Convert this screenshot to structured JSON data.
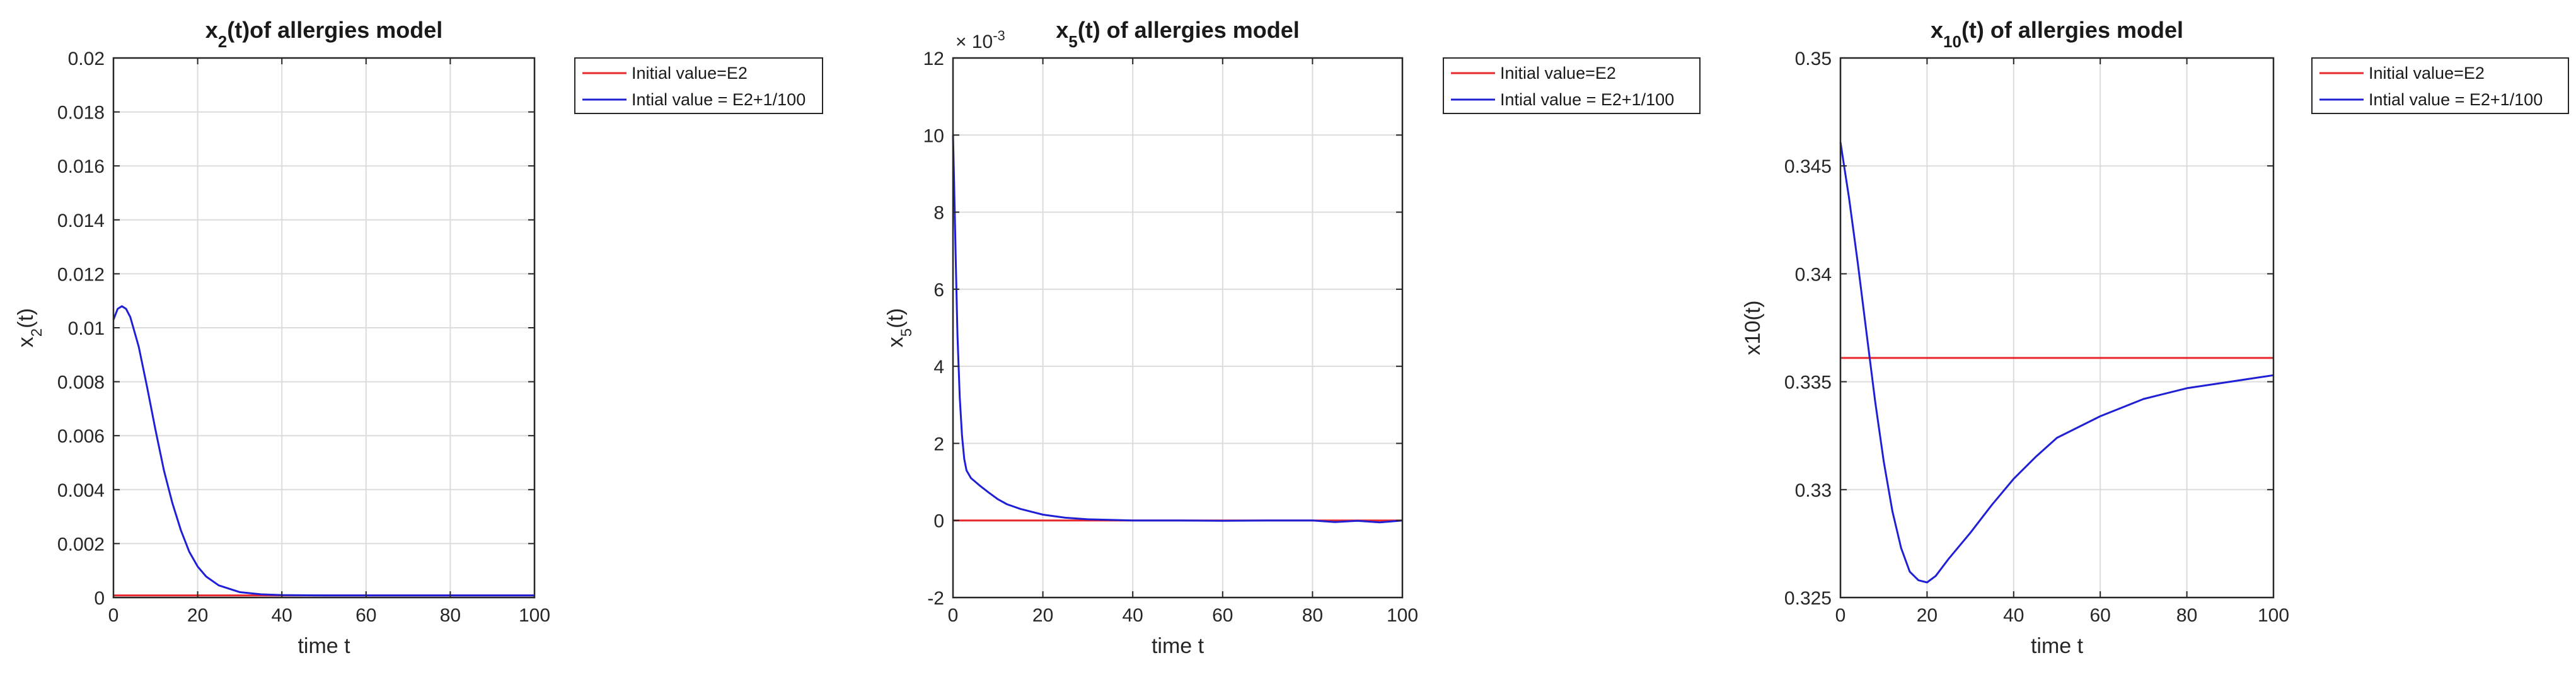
{
  "chart_data": [
    {
      "type": "line",
      "title": {
        "base": "x",
        "sub": "2",
        "rest": "(t)of allergies model"
      },
      "xlabel": "time t",
      "ylabel": {
        "base": "x",
        "sub": "2",
        "rest": "(t)"
      },
      "xlim": [
        0,
        100
      ],
      "ylim": [
        0,
        0.02
      ],
      "xticks": [
        0,
        20,
        40,
        60,
        80,
        100
      ],
      "xtick_labels": [
        "0",
        "20",
        "40",
        "60",
        "80",
        "100"
      ],
      "yticks": [
        0,
        0.002,
        0.004,
        0.006,
        0.008,
        0.01,
        0.012,
        0.014,
        0.016,
        0.018,
        0.02
      ],
      "ytick_labels": [
        "0",
        "0.002",
        "0.004",
        "0.006",
        "0.008",
        "0.01",
        "0.012",
        "0.014",
        "0.016",
        "0.018",
        "0.02"
      ],
      "exponent_label": null,
      "grid": true,
      "legend_position": "outside-right",
      "series": [
        {
          "name": "Initial value=E2",
          "color": "#e8262b",
          "x": [
            0,
            100
          ],
          "y": [
            8e-05,
            8e-05
          ]
        },
        {
          "name": "Intial value = E2+1/100",
          "color": "#1f1fd6",
          "x": [
            0,
            1,
            2,
            3,
            4,
            6,
            8,
            10,
            12,
            14,
            16,
            18,
            20,
            22,
            25,
            30,
            35,
            40,
            50,
            60,
            70,
            80,
            90,
            100
          ],
          "y": [
            0.0103,
            0.0107,
            0.0108,
            0.0107,
            0.0104,
            0.0093,
            0.0078,
            0.0062,
            0.0047,
            0.0035,
            0.0025,
            0.0017,
            0.00115,
            0.00078,
            0.00045,
            0.0002,
            0.00012,
            9e-05,
            8e-05,
            8e-05,
            8e-05,
            8e-05,
            8e-05,
            8e-05
          ]
        }
      ]
    },
    {
      "type": "line",
      "title": {
        "base": "x",
        "sub": "5",
        "rest": "(t) of allergies model"
      },
      "xlabel": "time t",
      "ylabel": {
        "base": "x",
        "sub": "5",
        "rest": "(t)"
      },
      "xlim": [
        0,
        100
      ],
      "ylim": [
        -2,
        12
      ],
      "xticks": [
        0,
        20,
        40,
        60,
        80,
        100
      ],
      "xtick_labels": [
        "0",
        "20",
        "40",
        "60",
        "80",
        "100"
      ],
      "yticks": [
        -2,
        0,
        2,
        4,
        6,
        8,
        10,
        12
      ],
      "ytick_labels": [
        "-2",
        "0",
        "2",
        "4",
        "6",
        "8",
        "10",
        "12"
      ],
      "exponent_label": {
        "prefix": "× 10",
        "exp": "-3"
      },
      "grid": true,
      "legend_position": "outside-right",
      "series": [
        {
          "name": "Initial value=E2",
          "color": "#e8262b",
          "x": [
            0,
            100
          ],
          "y": [
            0,
            0
          ]
        },
        {
          "name": "Intial value = E2+1/100",
          "color": "#1f1fd6",
          "x": [
            0,
            0.3,
            0.6,
            1,
            1.5,
            2,
            2.5,
            3,
            4,
            5,
            6,
            8,
            10,
            12,
            15,
            20,
            25,
            30,
            40,
            50,
            60,
            70,
            80,
            85,
            90,
            95,
            100
          ],
          "y": [
            10,
            8.5,
            6.8,
            4.8,
            3.2,
            2.2,
            1.6,
            1.3,
            1.1,
            1.0,
            0.9,
            0.72,
            0.55,
            0.42,
            0.3,
            0.15,
            0.07,
            0.03,
            0.0,
            0.0,
            -0.01,
            0.0,
            0.0,
            -0.04,
            -0.01,
            -0.05,
            0.0
          ]
        }
      ]
    },
    {
      "type": "line",
      "title": {
        "base": "x",
        "sub": "10",
        "rest": "(t) of allergies model"
      },
      "xlabel": "time t",
      "ylabel": {
        "base": "x10(t)",
        "sub": "",
        "rest": ""
      },
      "xlim": [
        0,
        100
      ],
      "ylim": [
        0.325,
        0.35
      ],
      "xticks": [
        0,
        20,
        40,
        60,
        80,
        100
      ],
      "xtick_labels": [
        "0",
        "20",
        "40",
        "60",
        "80",
        "100"
      ],
      "yticks": [
        0.325,
        0.33,
        0.335,
        0.34,
        0.345,
        0.35
      ],
      "ytick_labels": [
        "0.325",
        "0.33",
        "0.335",
        "0.34",
        "0.345",
        "0.35"
      ],
      "exponent_label": null,
      "grid": true,
      "legend_position": "outside-right",
      "series": [
        {
          "name": "Initial value=E2",
          "color": "#e8262b",
          "x": [
            0,
            100
          ],
          "y": [
            0.3361,
            0.3361
          ]
        },
        {
          "name": "Intial value = E2+1/100",
          "color": "#1f1fd6",
          "x": [
            0,
            2,
            4,
            6,
            8,
            10,
            12,
            14,
            16,
            18,
            20,
            22,
            25,
            30,
            35,
            40,
            45,
            50,
            60,
            70,
            80,
            90,
            100
          ],
          "y": [
            0.3461,
            0.3435,
            0.3405,
            0.3373,
            0.3341,
            0.3313,
            0.329,
            0.3273,
            0.3262,
            0.3258,
            0.3257,
            0.326,
            0.3268,
            0.328,
            0.3293,
            0.3305,
            0.3315,
            0.3324,
            0.3334,
            0.3342,
            0.3347,
            0.335,
            0.3353
          ]
        }
      ]
    }
  ]
}
